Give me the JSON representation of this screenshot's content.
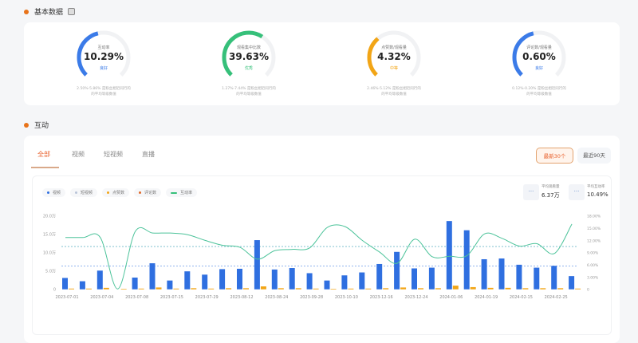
{
  "sections": {
    "basic": "基本数据",
    "interaction": "互动"
  },
  "gauges": [
    {
      "label": "互动率",
      "value": "10.29%",
      "status": "良好",
      "color": "#3b7be8",
      "fill": 0.45,
      "caption1": "2.50%-5.86% 是粉丝相近同行的",
      "caption2": "的平均等级数值"
    },
    {
      "label": "观看集中比数",
      "value": "39.63%",
      "status": "优秀",
      "color": "#36c07a",
      "fill": 0.62,
      "caption1": "1.27%-7.44% 是粉丝相近同行的",
      "caption2": "的平均等级数值"
    },
    {
      "label": "点赞数/观看量",
      "value": "4.32%",
      "status": "中等",
      "color": "#f2a516",
      "fill": 0.35,
      "caption1": "2.46%-5.12% 是粉丝相近同行的",
      "caption2": "的平均等级数值"
    },
    {
      "label": "评论数/观看量",
      "value": "0.60%",
      "status": "良好",
      "color": "#3b7be8",
      "fill": 0.45,
      "caption1": "0.12%-0.20% 是粉丝相近同行的",
      "caption2": "的平均等级数值"
    }
  ],
  "tabs": [
    "全部",
    "视频",
    "短视频",
    "直播"
  ],
  "range_buttons": [
    "最新30个",
    "最近90天"
  ],
  "legend": [
    {
      "label": "视频",
      "color": "#2f6fe0"
    },
    {
      "label": "短视频",
      "color": "#b8c4d8"
    },
    {
      "label": "点赞数",
      "color": "#f2a516"
    },
    {
      "label": "评论数",
      "color": "#e06a2a"
    },
    {
      "label": "互动率",
      "color": "#36c07a"
    }
  ],
  "stats": [
    {
      "label": "平均观看量",
      "value": "6.37万"
    },
    {
      "label": "平均互动率",
      "value": "10.49%"
    }
  ],
  "chart_data": {
    "type": "bar",
    "x_labels": [
      "2023-07-01",
      "2023-07-04",
      "2023-07-08",
      "2023-07-15",
      "2023-07-29",
      "2023-08-12",
      "2023-08-24",
      "2023-09-28",
      "2023-10-10",
      "2023-12-16",
      "2023-12-24",
      "2024-01-06",
      "2024-01-19",
      "2024-02-15",
      "2024-02-25"
    ],
    "left_ticks": [
      "0",
      "5.0万",
      "10.0万",
      "15.0万",
      "20.0万"
    ],
    "right_ticks": [
      "0",
      "3.00%",
      "6.00%",
      "9.00%",
      "12.00%",
      "15.00%",
      "18.00%"
    ],
    "left_ylim": [
      0,
      20
    ],
    "right_ylim": [
      0,
      18
    ],
    "series": [
      {
        "name": "视频",
        "axis": "left",
        "unit": "万",
        "values": [
          3.1,
          2.2,
          5.1,
          0,
          3.2,
          7.1,
          2.4,
          4.9,
          4.0,
          5.5,
          5.6,
          13.4,
          5.4,
          5.8,
          4.4,
          2.4,
          3.8,
          4.6,
          6.9,
          10.2,
          5.7,
          5.9,
          18.6,
          16.1,
          8.2,
          8.4,
          6.7,
          5.9,
          6.4,
          3.6
        ]
      },
      {
        "name": "点赞数",
        "axis": "left",
        "unit": "万",
        "values": [
          0.2,
          0.2,
          0.4,
          0,
          0.2,
          0.5,
          0.2,
          0.3,
          0.2,
          0.3,
          0.3,
          0.8,
          0.3,
          0.3,
          0.2,
          0.1,
          0.2,
          0.2,
          0.3,
          0.5,
          0.3,
          0.3,
          1.0,
          0.6,
          0.4,
          0.4,
          0.3,
          0.3,
          0.3,
          0.2
        ]
      },
      {
        "name": "互动率",
        "axis": "right",
        "type": "line",
        "unit": "%",
        "values": [
          12.7,
          12.7,
          12.7,
          0.1,
          14.2,
          13.8,
          13.8,
          13.4,
          12.0,
          10.8,
          10.3,
          7.4,
          9.5,
          9.8,
          10.2,
          15.2,
          15.4,
          12.0,
          9.1,
          6.4,
          12.3,
          8.0,
          8.1,
          8.3,
          13.6,
          12.5,
          10.6,
          11.2,
          8.8,
          16.0
        ]
      }
    ],
    "reference_lines": [
      {
        "axis": "left",
        "value": 6.37,
        "color": "#6d9be8"
      },
      {
        "axis": "right",
        "value": 10.49,
        "color": "#6fb8c9"
      }
    ]
  }
}
